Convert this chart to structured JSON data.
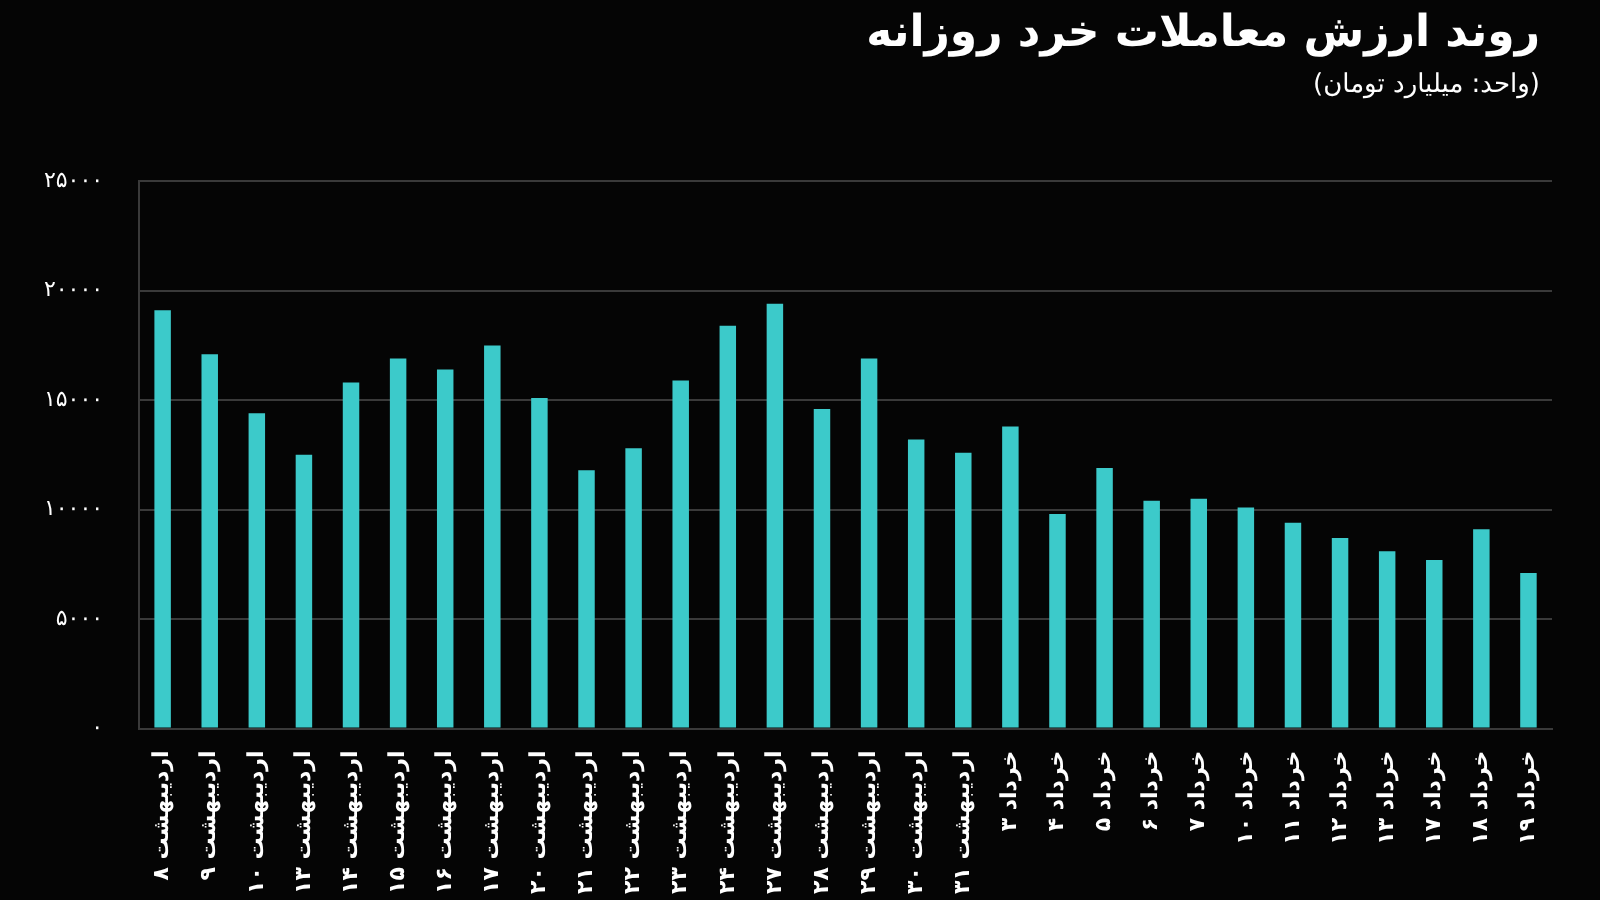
{
  "chart_data": {
    "type": "bar",
    "title": "روند ارزش معاملات خرد روزانه",
    "subtitle": "(واحد: میلیارد تومان)",
    "categories": [
      "۸ اردیبهشت",
      "۹ اردیبهشت",
      "۱۰ اردیبهشت",
      "۱۳ اردیبهشت",
      "۱۴ اردیبهشت",
      "۱۵ اردیبهشت",
      "۱۶ اردیبهشت",
      "۱۷ اردیبهشت",
      "۲۰ اردیبهشت",
      "۲۱ اردیبهشت",
      "۲۲ اردیبهشت",
      "۲۳ اردیبهشت",
      "۲۴ اردیبهشت",
      "۲۷ اردیبهشت",
      "۲۸ اردیبهشت",
      "۲۹ اردیبهشت",
      "۳۰ اردیبهشت",
      "۳۱ اردیبهشت",
      "۳ خرداد",
      "۴ خرداد",
      "۵ خرداد",
      "۶ خرداد",
      "۷ خرداد",
      "۱۰ خرداد",
      "۱۱ خرداد",
      "۱۲ خرداد",
      "۱۳ خرداد",
      "۱۷ خرداد",
      "۱۸ خرداد",
      "۱۹ خرداد"
    ],
    "values": [
      19100,
      17100,
      14400,
      12500,
      15800,
      16900,
      16400,
      17500,
      15100,
      11800,
      12800,
      15900,
      18400,
      19400,
      14600,
      16900,
      13200,
      12600,
      13800,
      9800,
      11900,
      10400,
      10500,
      10100,
      9400,
      8700,
      8100,
      7700,
      9100,
      7100
    ],
    "color": "#3ccaca",
    "ylim": [
      0,
      25000
    ],
    "yticks": [
      {
        "value": 0,
        "label": "۰"
      },
      {
        "value": 5000,
        "label": "۵۰۰۰"
      },
      {
        "value": 10000,
        "label": "۱۰۰۰۰"
      },
      {
        "value": 15000,
        "label": "۱۵۰۰۰"
      },
      {
        "value": 20000,
        "label": "۲۰۰۰۰"
      },
      {
        "value": 25000,
        "label": "۲۵۰۰۰"
      }
    ],
    "grid": "y"
  }
}
